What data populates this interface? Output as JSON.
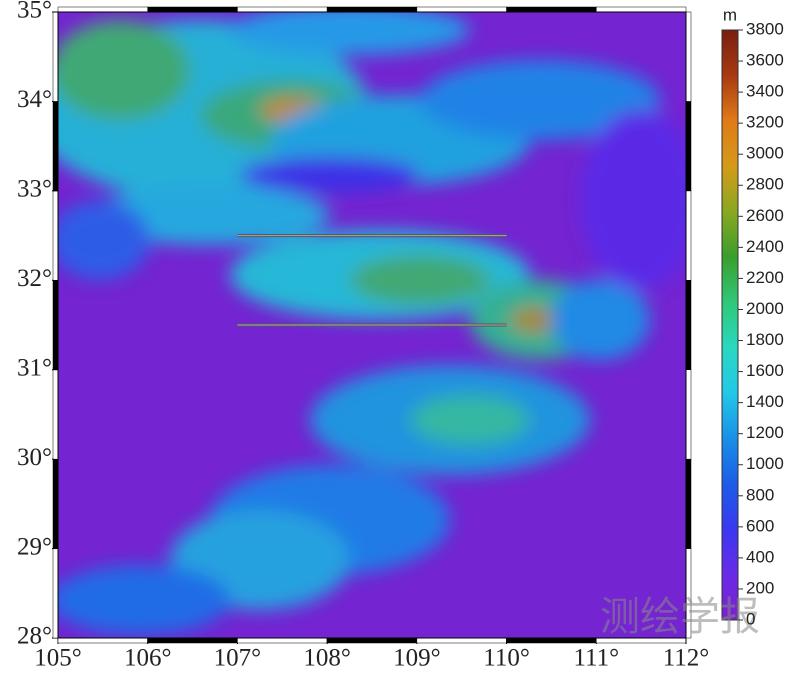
{
  "map": {
    "lon_ticks": [
      {
        "value": 105,
        "label": "105°"
      },
      {
        "value": 106,
        "label": "106°"
      },
      {
        "value": 107,
        "label": "107°"
      },
      {
        "value": 108,
        "label": "108°"
      },
      {
        "value": 109,
        "label": "109°"
      },
      {
        "value": 110,
        "label": "110°"
      },
      {
        "value": 111,
        "label": "111°"
      },
      {
        "value": 112,
        "label": "112°"
      }
    ],
    "lat_ticks": [
      {
        "value": 28,
        "label": "28°"
      },
      {
        "value": 29,
        "label": "29°"
      },
      {
        "value": 30,
        "label": "30°"
      },
      {
        "value": 31,
        "label": "31°"
      },
      {
        "value": 32,
        "label": "32°"
      },
      {
        "value": 33,
        "label": "33°"
      },
      {
        "value": 34,
        "label": "34°"
      },
      {
        "value": 35,
        "label": "35°"
      }
    ],
    "profiles": [
      {
        "lat": 32.5,
        "lon": [
          107,
          110
        ]
      },
      {
        "lat": 31.5,
        "lon": [
          107,
          110
        ]
      }
    ],
    "colorbar": {
      "unit": "m",
      "range": [
        0,
        3800
      ],
      "ticks": [
        0,
        200,
        400,
        600,
        800,
        1000,
        1200,
        1400,
        1600,
        1800,
        2000,
        2200,
        2400,
        2600,
        2800,
        3000,
        3200,
        3400,
        3600,
        3800
      ],
      "colors": [
        "#7a22cc",
        "#6a2ae8",
        "#3a38f0",
        "#1c5ce8",
        "#1a90e6",
        "#22c8e8",
        "#2ad8c0",
        "#30c878",
        "#3a9e2c",
        "#8aa820",
        "#d49a1a",
        "#e07a18",
        "#a83a12",
        "#7a1e10"
      ]
    },
    "watermark": "测绘学报"
  }
}
